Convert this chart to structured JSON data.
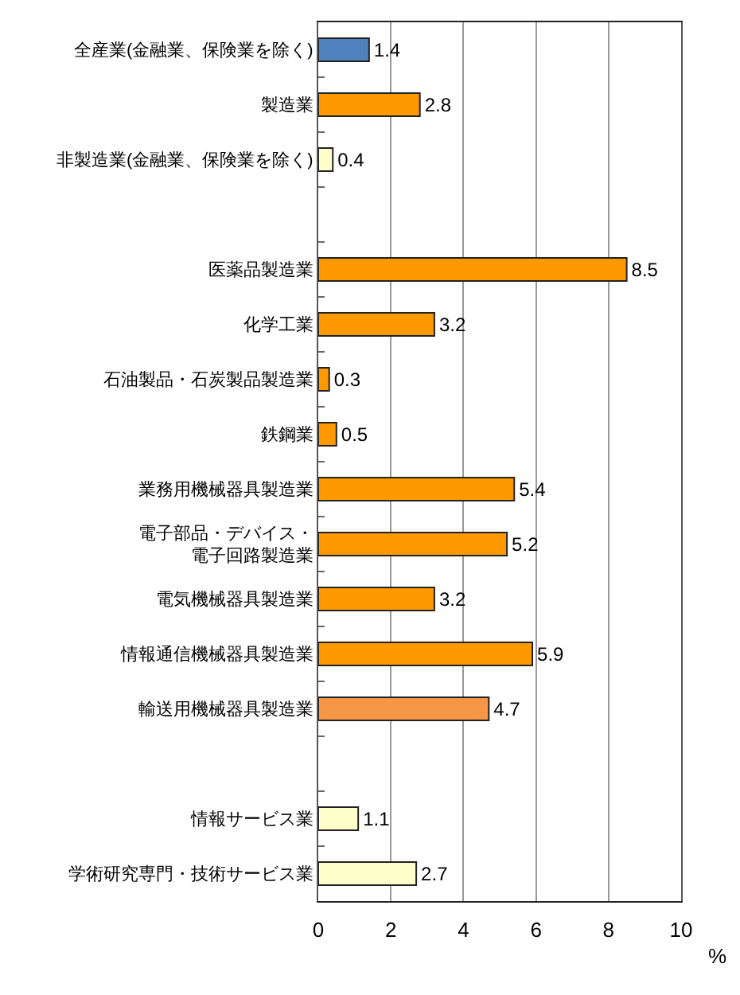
{
  "chart_data": {
    "type": "bar",
    "orientation": "horizontal",
    "categories": [
      "全産業(金融業、保険業を除く)",
      "製造業",
      "非製造業(金融業、保険業を除く)",
      null,
      "医薬品製造業",
      "化学工業",
      "石油製品・石炭製品製造業",
      "鉄鋼業",
      "業務用機械器具製造業",
      "電子部品・デバイス・電子回路製造業",
      "電気機械器具製造業",
      "情報通信機械器具製造業",
      "輸送用機械器具製造業",
      null,
      "情報サービス業",
      "学術研究専門・技術サービス業"
    ],
    "values": [
      1.4,
      2.8,
      0.4,
      null,
      8.5,
      3.2,
      0.3,
      0.5,
      5.4,
      5.2,
      3.2,
      5.9,
      4.7,
      null,
      1.1,
      2.7
    ],
    "colors": [
      "#4f81bd",
      "#ff9900",
      "#ffffcc",
      null,
      "#ff9900",
      "#ff9900",
      "#ff9900",
      "#ff9900",
      "#ff9900",
      "#ff9900",
      "#ff9900",
      "#ff9900",
      "#f79646",
      null,
      "#ffffcc",
      "#ffffcc"
    ],
    "xlabel": "%",
    "xlim": [
      0,
      10
    ],
    "xticks": [
      0,
      2,
      4,
      6,
      8,
      10
    ],
    "grid": "x",
    "data_labels": true
  }
}
